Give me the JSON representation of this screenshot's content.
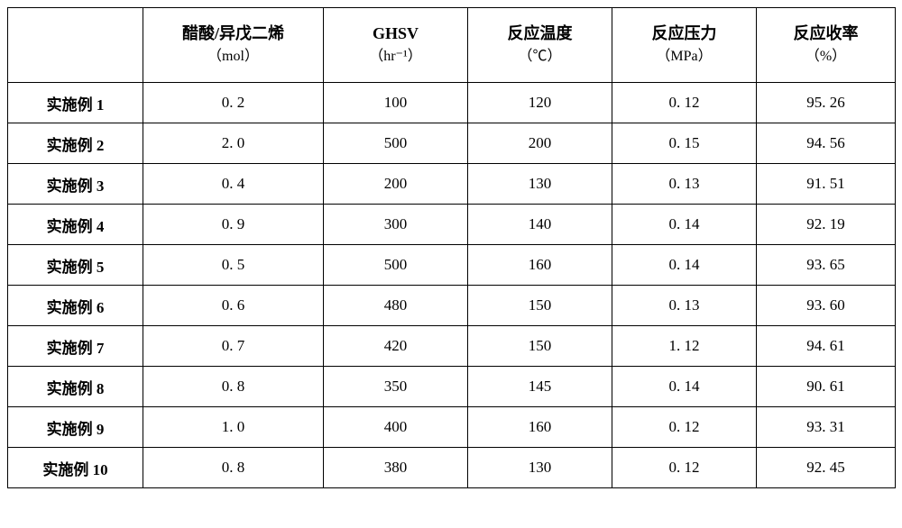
{
  "table": {
    "type": "table",
    "background_color": "#ffffff",
    "border_color": "#000000",
    "text_color": "#000000",
    "header_fontsize": 18,
    "sub_fontsize": 16,
    "cell_fontsize": 17,
    "columns": [
      {
        "main": "",
        "sub": ""
      },
      {
        "main": "醋酸/异戊二烯",
        "sub": "（mol）"
      },
      {
        "main": "GHSV",
        "sub": "（hr⁻¹）"
      },
      {
        "main": "反应温度",
        "sub": "（℃）"
      },
      {
        "main": "反应压力",
        "sub": "（MPa）"
      },
      {
        "main": "反应收率",
        "sub": "（%）"
      }
    ],
    "rows": [
      {
        "label": "实施例 1",
        "c1": "0. 2",
        "c2": "100",
        "c3": "120",
        "c4": "0. 12",
        "c5": "95. 26"
      },
      {
        "label": "实施例 2",
        "c1": "2. 0",
        "c2": "500",
        "c3": "200",
        "c4": "0. 15",
        "c5": "94. 56"
      },
      {
        "label": "实施例 3",
        "c1": "0. 4",
        "c2": "200",
        "c3": "130",
        "c4": "0. 13",
        "c5": "91. 51"
      },
      {
        "label": "实施例 4",
        "c1": "0. 9",
        "c2": "300",
        "c3": "140",
        "c4": "0. 14",
        "c5": "92. 19"
      },
      {
        "label": "实施例 5",
        "c1": "0. 5",
        "c2": "500",
        "c3": "160",
        "c4": "0. 14",
        "c5": "93. 65"
      },
      {
        "label": "实施例 6",
        "c1": "0. 6",
        "c2": "480",
        "c3": "150",
        "c4": "0. 13",
        "c5": "93. 60"
      },
      {
        "label": "实施例 7",
        "c1": "0. 7",
        "c2": "420",
        "c3": "150",
        "c4": "1. 12",
        "c5": "94. 61"
      },
      {
        "label": "实施例 8",
        "c1": "0. 8",
        "c2": "350",
        "c3": "145",
        "c4": "0. 14",
        "c5": "90. 61"
      },
      {
        "label": "实施例 9",
        "c1": "1. 0",
        "c2": "400",
        "c3": "160",
        "c4": "0. 12",
        "c5": "93. 31"
      },
      {
        "label": "实施例 10",
        "c1": "0. 8",
        "c2": "380",
        "c3": "130",
        "c4": "0. 12",
        "c5": "92. 45"
      }
    ]
  }
}
